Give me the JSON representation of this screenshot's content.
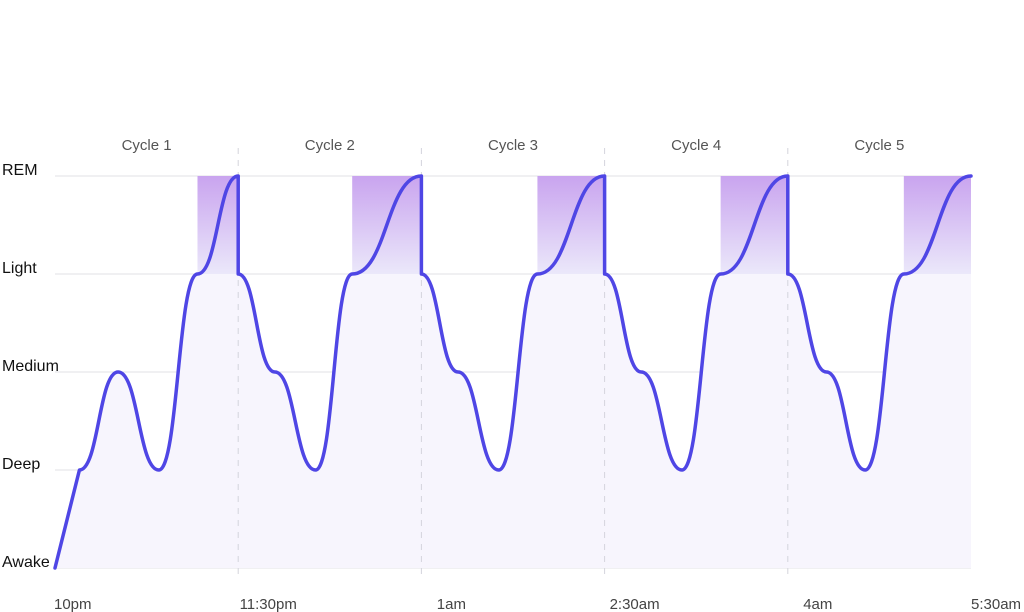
{
  "chart_data": {
    "type": "line",
    "title": "",
    "xlabel": "",
    "ylabel": "",
    "x_range": [
      "22:00",
      "05:30"
    ],
    "x_ticks": [
      {
        "time": "22:00",
        "label": "10pm"
      },
      {
        "time": "23:30",
        "label": "11:30pm"
      },
      {
        "time": "01:00",
        "label": "1am"
      },
      {
        "time": "02:30",
        "label": "2:30am"
      },
      {
        "time": "04:00",
        "label": "4am"
      },
      {
        "time": "05:30",
        "label": "5:30am"
      }
    ],
    "y_categories": [
      "Awake",
      "Deep",
      "Medium",
      "Light",
      "REM"
    ],
    "cycles": [
      {
        "label": "Cycle 1",
        "start": "22:00",
        "end": "23:30"
      },
      {
        "label": "Cycle 2",
        "start": "23:30",
        "end": "01:00"
      },
      {
        "label": "Cycle 3",
        "start": "01:00",
        "end": "02:30"
      },
      {
        "label": "Cycle 4",
        "start": "02:30",
        "end": "04:00"
      },
      {
        "label": "Cycle 5",
        "start": "04:00",
        "end": "05:30"
      }
    ],
    "rem_periods": [
      {
        "start": "23:10",
        "end": "23:30"
      },
      {
        "start": "00:26",
        "end": "01:00"
      },
      {
        "start": "01:57",
        "end": "02:30"
      },
      {
        "start": "03:27",
        "end": "04:00"
      },
      {
        "start": "04:57",
        "end": "05:30"
      }
    ],
    "series": [
      {
        "points": [
          [
            "22:00",
            "Awake"
          ],
          [
            "22:12",
            "Deep"
          ],
          [
            "22:31",
            "Medium"
          ],
          [
            "22:51",
            "Deep"
          ],
          [
            "23:10",
            "Light"
          ],
          [
            "23:30",
            "REM"
          ],
          [
            "23:30",
            "Light"
          ],
          [
            "23:48",
            "Medium"
          ],
          [
            "00:08",
            "Deep"
          ],
          [
            "00:26",
            "Light"
          ],
          [
            "01:00",
            "REM"
          ],
          [
            "01:00",
            "Light"
          ],
          [
            "01:18",
            "Medium"
          ],
          [
            "01:38",
            "Deep"
          ],
          [
            "01:57",
            "Light"
          ],
          [
            "02:30",
            "REM"
          ],
          [
            "02:30",
            "Light"
          ],
          [
            "02:48",
            "Medium"
          ],
          [
            "03:08",
            "Deep"
          ],
          [
            "03:27",
            "Light"
          ],
          [
            "04:00",
            "REM"
          ],
          [
            "04:00",
            "Light"
          ],
          [
            "04:19",
            "Medium"
          ],
          [
            "04:38",
            "Deep"
          ],
          [
            "04:57",
            "Light"
          ],
          [
            "05:30",
            "REM"
          ]
        ]
      }
    ],
    "colors": {
      "line": "#4f46e5",
      "area": "#f7f5fd",
      "rem_top": "#c9a4ef",
      "rem_bottom": "#ebe8fa",
      "grid": "#e2e2e6",
      "cycle_divider": "#d4d4dc"
    },
    "grid": true
  }
}
